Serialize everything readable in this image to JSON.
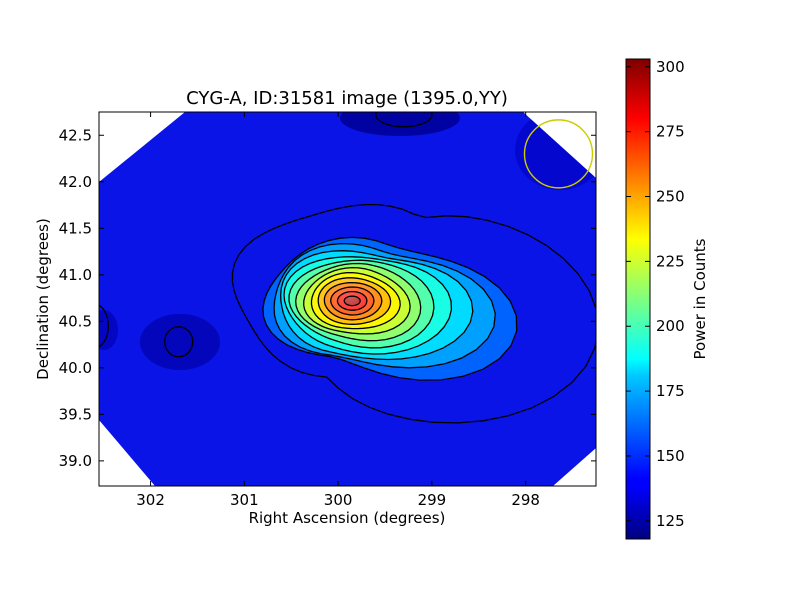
{
  "chart_data": {
    "type": "heatmap",
    "title": "CYG-A, ID:31581 image (1395.0,YY)",
    "xlabel": "Right Ascension (degrees)",
    "ylabel": "Declination (degrees)",
    "xlim": [
      302.55,
      297.25
    ],
    "ylim": [
      38.73,
      42.75
    ],
    "x_ticks": [
      "302",
      "301",
      "300",
      "299",
      "298"
    ],
    "x_tick_values": [
      302,
      301,
      300,
      299,
      298
    ],
    "y_ticks": [
      "39.0",
      "39.5",
      "40.0",
      "40.5",
      "41.0",
      "41.5",
      "42.0",
      "42.5"
    ],
    "y_tick_values": [
      39.0,
      39.5,
      40.0,
      40.5,
      41.0,
      41.5,
      42.0,
      42.5
    ],
    "colorbar": {
      "label": "Power in Counts",
      "range": [
        118,
        303
      ],
      "ticks": [
        "125",
        "150",
        "175",
        "200",
        "225",
        "250",
        "275",
        "300"
      ],
      "tick_values": [
        125,
        150,
        175,
        200,
        225,
        250,
        275,
        300
      ]
    },
    "colormap": "jet",
    "background_level": 135,
    "peak": {
      "ra": 299.85,
      "dec": 40.72,
      "value": 303
    },
    "secondary_lobe": {
      "ra": 299.0,
      "dec": 40.35,
      "value": 150
    },
    "contour_levels": [
      148,
      160,
      172,
      184,
      196,
      208,
      220,
      232,
      244,
      256,
      268,
      280,
      298
    ],
    "beam": {
      "ra": 297.65,
      "dec": 42.3,
      "color": "#cccc00"
    },
    "colors": {
      "contour": "#000000",
      "beam_circle": "#cccc00"
    }
  }
}
